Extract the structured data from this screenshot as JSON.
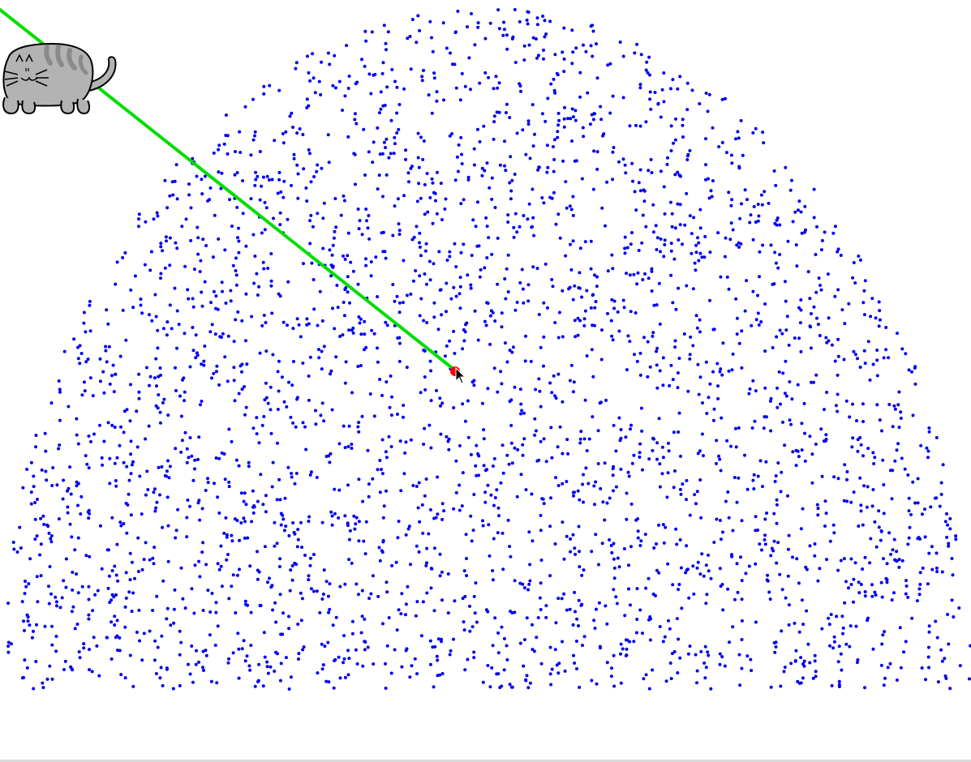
{
  "scene": {
    "background_color": "#ffffff",
    "dot_color": "#0000ee",
    "laser_color": "#00dd00",
    "target_color": "#ff0000",
    "cat": {
      "icon": "cat-icon",
      "body_color": "#b3b3b3",
      "stripe_color": "#8a8a8a",
      "outline_color": "#000000"
    },
    "cursor": {
      "icon": "mouse-pointer-icon"
    }
  }
}
